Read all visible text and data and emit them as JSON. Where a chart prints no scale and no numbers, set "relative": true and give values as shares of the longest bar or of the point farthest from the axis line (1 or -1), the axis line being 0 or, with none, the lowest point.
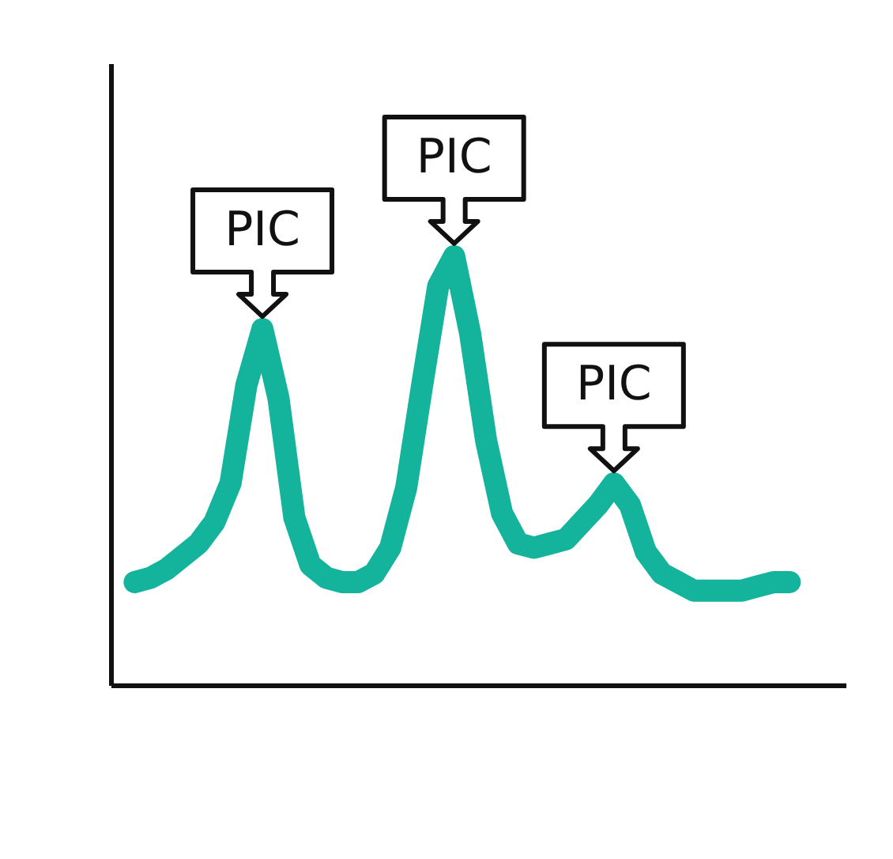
{
  "chart_data": {
    "type": "line",
    "relative": true,
    "categories": [
      null,
      null,
      null,
      null,
      null,
      null,
      null,
      null,
      null,
      null,
      null,
      null,
      null,
      null,
      null,
      null,
      null,
      null,
      null,
      null,
      null,
      null,
      null,
      null,
      null,
      null,
      null,
      null,
      null,
      null,
      null,
      null,
      null,
      null,
      null,
      null,
      null,
      null,
      null,
      null,
      null,
      null
    ],
    "series": [
      {
        "color": "#14b39b",
        "values": [
          0.24,
          0.25,
          0.27,
          0.3,
          0.33,
          0.38,
          0.47,
          0.7,
          0.83,
          0.67,
          0.39,
          0.28,
          0.25,
          0.24,
          0.24,
          0.26,
          0.32,
          0.46,
          0.7,
          0.93,
          1,
          0.82,
          0.57,
          0.4,
          0.33,
          0.32,
          0.33,
          0.34,
          0.38,
          0.42,
          0.47,
          0.42,
          0.31,
          0.26,
          0.24,
          0.22,
          0.22,
          0.22,
          0.22,
          0.23,
          0.24,
          0.24
        ]
      }
    ],
    "annotations": [
      "PIC",
      "PIC",
      "PIC"
    ],
    "grid": false,
    "line_style": "solid"
  }
}
